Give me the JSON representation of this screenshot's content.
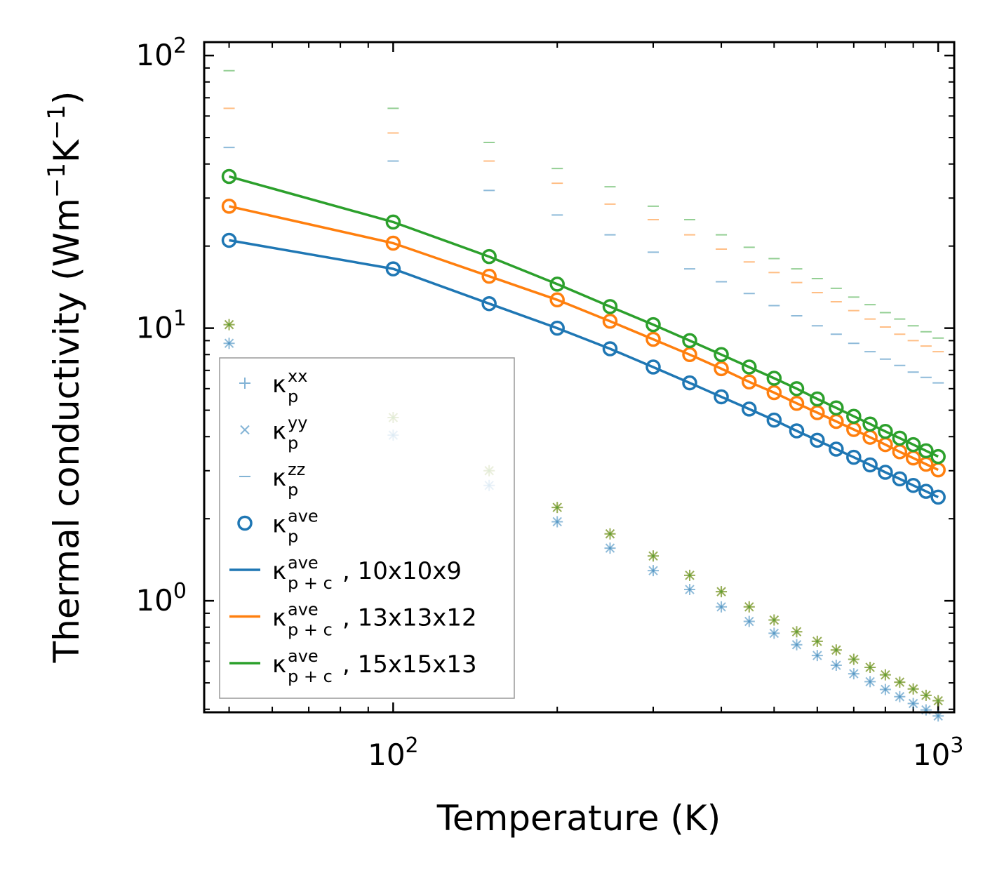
{
  "chart_data": {
    "type": "scatter",
    "xscale": "log",
    "yscale": "log",
    "xlabel": "Temperature (K)",
    "ylabel": "Thermal conductivity (Wm⁻¹K⁻¹)",
    "xlim": [
      45,
      1070
    ],
    "ylim": [
      0.39,
      112
    ],
    "x_ticks": [
      {
        "base": "10",
        "exp": "2",
        "value": 100
      },
      {
        "base": "10",
        "exp": "3",
        "value": 1000
      }
    ],
    "y_ticks": [
      {
        "base": "10",
        "exp": "0",
        "value": 1
      },
      {
        "base": "10",
        "exp": "1",
        "value": 10
      },
      {
        "base": "10",
        "exp": "2",
        "value": 100
      }
    ],
    "legend_position": "lower-left",
    "x": [
      50,
      100,
      150,
      200,
      250,
      300,
      350,
      400,
      450,
      500,
      550,
      600,
      650,
      700,
      750,
      800,
      850,
      900,
      950,
      1000
    ],
    "series": [
      {
        "group": "10x10x9",
        "color": "#1f77b4",
        "kxx": [
          8.8,
          4.05,
          2.65,
          1.95,
          1.56,
          1.29,
          1.1,
          0.95,
          0.84,
          0.76,
          0.69,
          0.63,
          0.58,
          0.54,
          0.505,
          0.473,
          0.445,
          0.42,
          0.398,
          0.378
        ],
        "kyy": [
          8.8,
          4.05,
          2.65,
          1.95,
          1.56,
          1.29,
          1.1,
          0.95,
          0.84,
          0.76,
          0.69,
          0.63,
          0.58,
          0.54,
          0.505,
          0.473,
          0.445,
          0.42,
          0.398,
          0.378
        ],
        "kzz": [
          46,
          41,
          32,
          26,
          22,
          19,
          16.5,
          14.8,
          13.4,
          12.1,
          11.1,
          10.2,
          9.5,
          8.8,
          8.2,
          7.7,
          7.3,
          6.9,
          6.6,
          6.3
        ],
        "kave": [
          21,
          16.5,
          12.3,
          10,
          8.4,
          7.2,
          6.3,
          5.6,
          5.05,
          4.6,
          4.2,
          3.88,
          3.6,
          3.36,
          3.15,
          2.96,
          2.8,
          2.65,
          2.52,
          2.4
        ]
      },
      {
        "group": "13x13x12",
        "color": "#ff7f0e",
        "kxx": [
          10.3,
          4.7,
          3.0,
          2.2,
          1.76,
          1.46,
          1.24,
          1.08,
          0.95,
          0.85,
          0.77,
          0.71,
          0.66,
          0.61,
          0.57,
          0.535,
          0.503,
          0.475,
          0.45,
          0.43
        ],
        "kyy": [
          10.3,
          4.7,
          3.0,
          2.2,
          1.76,
          1.46,
          1.24,
          1.08,
          0.95,
          0.85,
          0.77,
          0.71,
          0.66,
          0.61,
          0.57,
          0.535,
          0.503,
          0.475,
          0.45,
          0.43
        ],
        "kzz": [
          64,
          52,
          41,
          34,
          28.5,
          25,
          22,
          19.5,
          17.5,
          16,
          14.7,
          13.5,
          12.5,
          11.6,
          10.8,
          10.1,
          9.5,
          9,
          8.6,
          8.2
        ],
        "kave": [
          28,
          20.5,
          15.5,
          12.7,
          10.6,
          9.1,
          8.0,
          7.1,
          6.35,
          5.8,
          5.3,
          4.9,
          4.55,
          4.25,
          3.98,
          3.74,
          3.52,
          3.34,
          3.17,
          3.02
        ]
      },
      {
        "group": "15x15x13",
        "color": "#2ca02c",
        "kxx": [
          10.3,
          4.7,
          3.0,
          2.2,
          1.76,
          1.46,
          1.24,
          1.08,
          0.95,
          0.85,
          0.77,
          0.71,
          0.66,
          0.61,
          0.57,
          0.535,
          0.503,
          0.475,
          0.45,
          0.43
        ],
        "kyy": [
          10.3,
          4.7,
          3.0,
          2.2,
          1.76,
          1.46,
          1.24,
          1.08,
          0.95,
          0.85,
          0.77,
          0.71,
          0.66,
          0.61,
          0.57,
          0.535,
          0.503,
          0.475,
          0.45,
          0.43
        ],
        "kzz": [
          88,
          64,
          48,
          38.5,
          33,
          28,
          25,
          22,
          19.8,
          18,
          16.5,
          15.2,
          14,
          13,
          12.2,
          11.4,
          10.8,
          10.2,
          9.7,
          9.2
        ],
        "kave": [
          36,
          24.5,
          18.3,
          14.5,
          12.0,
          10.3,
          9.0,
          8.0,
          7.2,
          6.55,
          6.0,
          5.5,
          5.1,
          4.75,
          4.45,
          4.18,
          3.95,
          3.74,
          3.55,
          3.38
        ]
      }
    ],
    "legend": [
      {
        "marker": "plus",
        "kappa": "κ",
        "sup": "xx",
        "sub": "p",
        "suffix": ""
      },
      {
        "marker": "cross",
        "kappa": "κ",
        "sup": "yy",
        "sub": "p",
        "suffix": ""
      },
      {
        "marker": "dash",
        "kappa": "κ",
        "sup": "zz",
        "sub": "p",
        "suffix": ""
      },
      {
        "marker": "circle",
        "kappa": "κ",
        "sup": "ave",
        "sub": "p",
        "suffix": ""
      },
      {
        "marker": "line",
        "color": "#1f77b4",
        "kappa": "κ",
        "sup": "ave",
        "sub": "p + c",
        "suffix": ", 10x10x9"
      },
      {
        "marker": "line",
        "color": "#ff7f0e",
        "kappa": "κ",
        "sup": "ave",
        "sub": "p + c",
        "suffix": ", 13x13x12"
      },
      {
        "marker": "line",
        "color": "#2ca02c",
        "kappa": "κ",
        "sup": "ave",
        "sub": "p + c",
        "suffix": ", 15x15x13"
      }
    ],
    "legend_marker_color": "#1f77b4"
  }
}
